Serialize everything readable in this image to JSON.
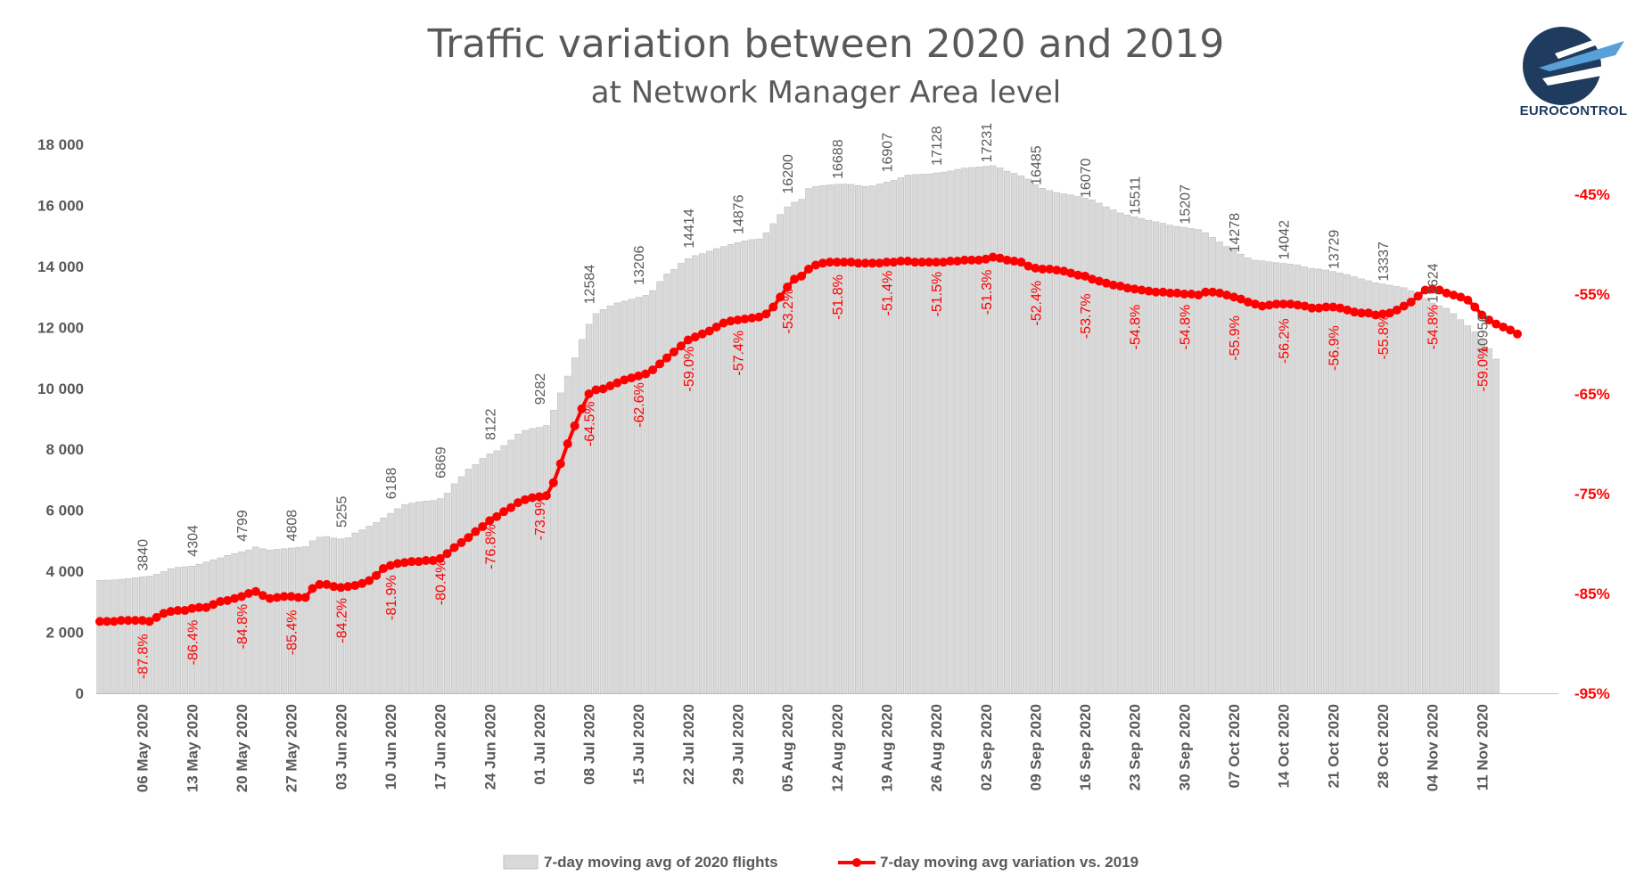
{
  "header": {
    "title": "Traffic variation between 2020 and 2019",
    "subtitle": "at Network Manager Area level",
    "logo_text": "EUROCONTROL"
  },
  "colors": {
    "bar_fill": "#d9d9d9",
    "bar_stroke": "#bfbfbf",
    "line": "#ff0000",
    "axis_text": "#595959",
    "right_axis_text": "#ff0000"
  },
  "chart_data": {
    "type": "bar+line",
    "title": "Traffic variation between 2020 and 2019",
    "subtitle": "at Network Manager Area level",
    "left_axis": {
      "min": 0,
      "max": 18000,
      "ticks": [
        "0",
        "2 000",
        "4 000",
        "6 000",
        "8 000",
        "10 000",
        "12 000",
        "14 000",
        "16 000",
        "18 000"
      ]
    },
    "right_axis": {
      "min": -95,
      "max": -40,
      "ticks": [
        "-45%",
        "-55%",
        "-65%",
        "-75%",
        "-85%",
        "-95%"
      ]
    },
    "x_tick_labels": [
      "06 May 2020",
      "13 May 2020",
      "20 May 2020",
      "27 May 2020",
      "03 Jun 2020",
      "10 Jun 2020",
      "17 Jun 2020",
      "24 Jun 2020",
      "01 Jul 2020",
      "08 Jul 2020",
      "15 Jul 2020",
      "22 Jul 2020",
      "29 Jul 2020",
      "05 Aug 2020",
      "12 Aug 2020",
      "19 Aug 2020",
      "26 Aug 2020",
      "02 Sep 2020",
      "09 Sep 2020",
      "16 Sep 2020",
      "23 Sep 2020",
      "30 Sep 2020",
      "07 Oct 2020",
      "14 Oct 2020",
      "21 Oct 2020",
      "28 Oct 2020",
      "04 Nov 2020",
      "11 Nov 2020"
    ],
    "weekly_flights": [
      3840,
      4304,
      4799,
      4808,
      5255,
      6188,
      6869,
      8122,
      9282,
      12584,
      13206,
      14414,
      14876,
      16200,
      16688,
      16907,
      17128,
      17231,
      16485,
      16070,
      15511,
      15207,
      14278,
      14042,
      13729,
      13337,
      12624,
      10956
    ],
    "weekly_flight_labels": [
      "3840",
      "4304",
      "4799",
      "4808",
      "5255",
      "6188",
      "6869",
      "8122",
      "9282",
      "12584",
      "13206",
      "14414",
      "14876",
      "16200",
      "16688",
      "16907",
      "17128",
      "17231",
      "16485",
      "16070",
      "15511",
      "15207",
      "14278",
      "14042",
      "13729",
      "13337",
      "12624",
      "10956"
    ],
    "weekly_variation_pct": [
      -87.8,
      -86.4,
      -84.8,
      -85.4,
      -84.2,
      -81.9,
      -80.4,
      -76.8,
      -73.9,
      -64.5,
      -62.6,
      -59.0,
      -57.4,
      -53.2,
      -51.8,
      -51.4,
      -51.5,
      -51.3,
      -52.4,
      -53.7,
      -54.8,
      -54.8,
      -55.9,
      -56.2,
      -56.9,
      -55.8,
      -54.8,
      -59.0
    ],
    "weekly_variation_labels": [
      "-87.8%",
      "-86.4%",
      "-84.8%",
      "-85.4%",
      "-84.2%",
      "-81.9%",
      "-80.4%",
      "-76.8%",
      "-73.9%",
      "-64.5%",
      "-62.6%",
      "-59.0%",
      "-57.4%",
      "-53.2%",
      "-51.8%",
      "-51.4%",
      "-51.5%",
      "-51.3%",
      "-52.4%",
      "-53.7%",
      "-54.8%",
      "-54.8%",
      "-55.9%",
      "-56.2%",
      "-56.9%",
      "-55.8%",
      "-54.8%",
      "-59.0%"
    ],
    "daily_flights_from_30_Apr": [
      3700,
      3710,
      3720,
      3740,
      3760,
      3790,
      3820,
      3840,
      3900,
      3990,
      4080,
      4130,
      4150,
      4170,
      4230,
      4304,
      4380,
      4440,
      4520,
      4580,
      4640,
      4700,
      4799,
      4740,
      4700,
      4720,
      4740,
      4760,
      4780,
      4808,
      5000,
      5120,
      5140,
      5090,
      5060,
      5100,
      5255,
      5360,
      5480,
      5600,
      5750,
      5900,
      6050,
      6188,
      6230,
      6280,
      6300,
      6320,
      6380,
      6560,
      6869,
      7100,
      7350,
      7500,
      7700,
      7850,
      7950,
      8122,
      8300,
      8500,
      8620,
      8680,
      8720,
      8780,
      9282,
      9850,
      10400,
      11000,
      11600,
      12100,
      12450,
      12584,
      12700,
      12800,
      12860,
      12920,
      12980,
      13050,
      13206,
      13500,
      13750,
      13900,
      14100,
      14250,
      14350,
      14414,
      14500,
      14580,
      14650,
      14720,
      14780,
      14830,
      14876,
      14900,
      15100,
      15400,
      15700,
      15950,
      16100,
      16200,
      16550,
      16620,
      16650,
      16670,
      16690,
      16700,
      16688,
      16650,
      16620,
      16640,
      16700,
      16760,
      16820,
      16907,
      16990,
      17010,
      17020,
      17030,
      17060,
      17090,
      17128,
      17180,
      17220,
      17240,
      17260,
      17280,
      17300,
      17231,
      17120,
      17050,
      16970,
      16860,
      16680,
      16560,
      16485,
      16420,
      16380,
      16340,
      16290,
      16240,
      16180,
      16070,
      15950,
      15850,
      15750,
      15680,
      15620,
      15570,
      15511,
      15460,
      15410,
      15350,
      15310,
      15280,
      15240,
      15207,
      15100,
      14950,
      14800,
      14650,
      14540,
      14400,
      14278,
      14200,
      14180,
      14150,
      14120,
      14100,
      14070,
      14042,
      13980,
      13930,
      13910,
      13880,
      13830,
      13780,
      13729,
      13660,
      13590,
      13530,
      13460,
      13420,
      13380,
      13337,
      13300,
      13200,
      13100,
      12950,
      12800,
      12700,
      12624,
      12450,
      12250,
      12050,
      11850,
      11600,
      11300,
      10956
    ],
    "daily_variation_pct_from_30_Apr": [
      -87.8,
      -87.8,
      -87.8,
      -87.7,
      -87.7,
      -87.7,
      -87.7,
      -87.8,
      -87.4,
      -87.0,
      -86.8,
      -86.7,
      -86.7,
      -86.5,
      -86.4,
      -86.4,
      -86.1,
      -85.8,
      -85.7,
      -85.5,
      -85.3,
      -85.0,
      -84.8,
      -85.2,
      -85.5,
      -85.4,
      -85.3,
      -85.3,
      -85.4,
      -85.4,
      -84.5,
      -84.1,
      -84.1,
      -84.3,
      -84.4,
      -84.3,
      -84.2,
      -84.0,
      -83.7,
      -83.2,
      -82.5,
      -82.2,
      -82.0,
      -81.9,
      -81.8,
      -81.8,
      -81.7,
      -81.7,
      -81.5,
      -81.0,
      -80.4,
      -79.9,
      -79.4,
      -78.8,
      -78.3,
      -77.7,
      -77.3,
      -76.8,
      -76.4,
      -75.9,
      -75.6,
      -75.4,
      -75.3,
      -75.2,
      -73.9,
      -72.0,
      -70.0,
      -68.2,
      -66.5,
      -65.0,
      -64.6,
      -64.5,
      -64.2,
      -63.9,
      -63.6,
      -63.4,
      -63.2,
      -63.0,
      -62.6,
      -62.0,
      -61.4,
      -60.8,
      -60.2,
      -59.6,
      -59.3,
      -59.0,
      -58.7,
      -58.3,
      -57.9,
      -57.7,
      -57.6,
      -57.5,
      -57.4,
      -57.3,
      -57.0,
      -56.3,
      -55.3,
      -54.3,
      -53.5,
      -53.2,
      -52.5,
      -52.1,
      -51.9,
      -51.8,
      -51.8,
      -51.8,
      -51.8,
      -51.9,
      -51.9,
      -51.9,
      -51.9,
      -51.8,
      -51.8,
      -51.7,
      -51.7,
      -51.8,
      -51.8,
      -51.8,
      -51.8,
      -51.8,
      -51.7,
      -51.7,
      -51.6,
      -51.6,
      -51.6,
      -51.5,
      -51.3,
      -51.4,
      -51.6,
      -51.7,
      -51.8,
      -52.2,
      -52.4,
      -52.5,
      -52.5,
      -52.6,
      -52.7,
      -52.9,
      -53.1,
      -53.2,
      -53.5,
      -53.7,
      -53.9,
      -54.1,
      -54.2,
      -54.4,
      -54.5,
      -54.6,
      -54.7,
      -54.8,
      -54.8,
      -54.9,
      -54.9,
      -55.0,
      -55.0,
      -55.1,
      -54.8,
      -54.8,
      -54.9,
      -55.1,
      -55.3,
      -55.5,
      -55.8,
      -56.0,
      -56.2,
      -56.1,
      -56.0,
      -56.0,
      -56.0,
      -56.1,
      -56.2,
      -56.4,
      -56.4,
      -56.3,
      -56.3,
      -56.4,
      -56.6,
      -56.8,
      -56.9,
      -56.9,
      -57.1,
      -57.0,
      -56.9,
      -56.6,
      -56.2,
      -55.8,
      -55.2,
      -54.6,
      -54.5,
      -54.6,
      -54.9,
      -55.1,
      -55.3,
      -55.6,
      -56.3,
      -57.1,
      -57.6,
      -58.0,
      -58.3,
      -58.6,
      -59.0
    ],
    "legend": {
      "bars": "7-day moving avg of 2020 flights",
      "line": "7-day moving avg variation vs. 2019",
      "placement": "bottom-center"
    }
  }
}
